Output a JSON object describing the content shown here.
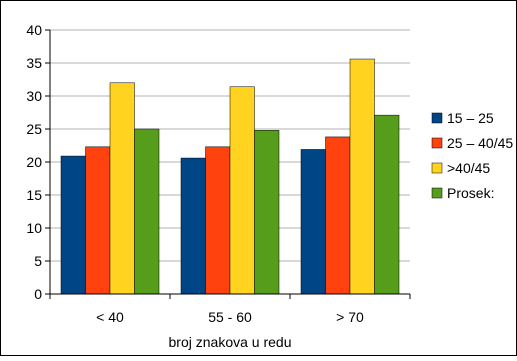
{
  "chart_data": {
    "type": "bar",
    "title": "",
    "xlabel": "broj znakova u redu",
    "ylabel": "",
    "categories": [
      "< 40",
      "55 - 60",
      "> 70"
    ],
    "ylim": [
      0,
      40
    ],
    "ytick_step": 5,
    "ytick_labels": [
      "0",
      "5",
      "10",
      "15",
      "20",
      "25",
      "30",
      "35",
      "40"
    ],
    "grid": true,
    "legend": "right",
    "series": [
      {
        "name": "15 – 25",
        "color": "#004586",
        "values": [
          20.9,
          20.6,
          21.9
        ]
      },
      {
        "name": "25 – 40/45",
        "color": "#ff420e",
        "values": [
          22.3,
          22.3,
          23.8
        ]
      },
      {
        "name": ">40/45",
        "color": "#ffd320",
        "values": [
          32.0,
          31.4,
          35.6
        ]
      },
      {
        "name": "Prosek:",
        "color": "#579d1c",
        "values": [
          25.0,
          24.8,
          27.1
        ]
      }
    ]
  }
}
